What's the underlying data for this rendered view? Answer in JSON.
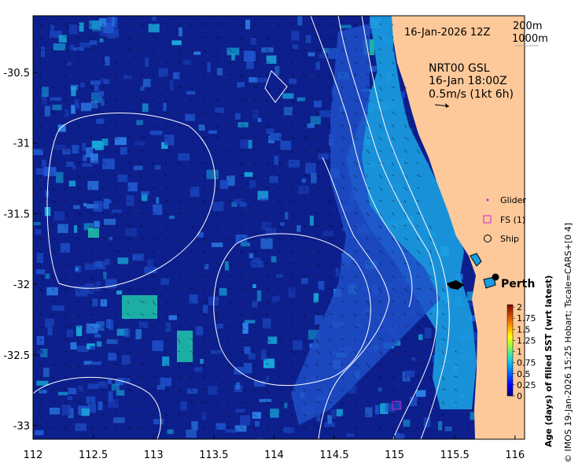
{
  "map": {
    "date_label": "16-Jan-2026 12Z",
    "isobath_labels": [
      "200m",
      "1000m"
    ],
    "current_title": "NRT00 GSL",
    "current_time": "16-Jan 18:00Z",
    "current_scale": "0.5m/s (1kt 6h)",
    "city": "Perth",
    "x_ticks": [
      "112",
      "112.5",
      "113",
      "113.5",
      "114",
      "114.5",
      "115",
      "115.5",
      "116"
    ],
    "y_ticks": [
      "-30.5",
      "-31",
      "-31.5",
      "-32",
      "-32.5",
      "-33"
    ],
    "land_color": "#fdc99a",
    "ocean_color": "#0d1f8c"
  },
  "legend": {
    "glider": "Glider",
    "fs": "FS (1)",
    "ship": "Ship"
  },
  "colorbar": {
    "title": "Age (days) of filled SST (wrt latest)",
    "ticks": [
      "2",
      "1.75",
      "1.5",
      "1.25",
      "1",
      "0.75",
      "0.5",
      "0.25",
      "0"
    ]
  },
  "credit": "© IMOS 19-Jan-2026 15:25 Hobart; Tscale=CARS+[0 4]"
}
